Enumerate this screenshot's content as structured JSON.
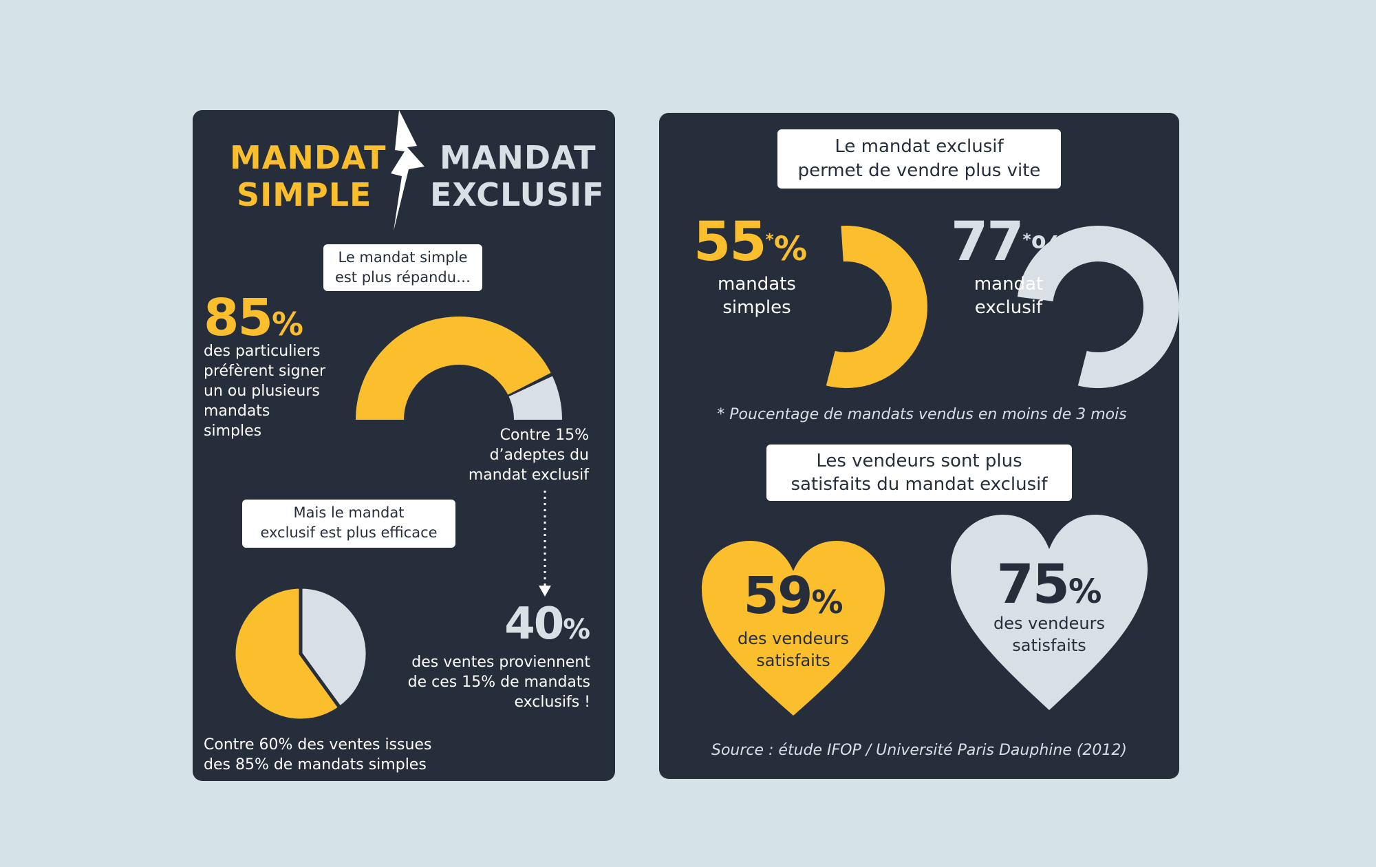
{
  "colors": {
    "background": "#d5e2e8",
    "panel": "#252e3a",
    "accent": "#fbbe2c",
    "secondary": "#d8e0e5",
    "text": "#ffffff"
  },
  "left": {
    "title_simple": [
      "MANDAT",
      "SIMPLE"
    ],
    "title_exclusive": [
      "MANDAT",
      "EXCLUSIF"
    ],
    "callout1": [
      "Le mandat simple",
      "est plus répandu…"
    ],
    "stat85": {
      "num": "85",
      "pct": "%"
    },
    "stat85_text": [
      "des particuliers",
      "préfèrent signer",
      "un ou plusieurs",
      "mandats",
      "simples"
    ],
    "contre15_text": [
      "Contre 15%",
      "d’adeptes du",
      "mandat exclusif"
    ],
    "callout2": [
      "Mais le mandat",
      "exclusif est plus efficace"
    ],
    "stat40": {
      "num": "40",
      "pct": "%"
    },
    "stat40_text": [
      "des ventes proviennent",
      "de ces 15% de mandats",
      "exclusifs !"
    ],
    "bottom_text": [
      "Contre 60% des ventes issues",
      "des 85% de mandats simples"
    ]
  },
  "right": {
    "callout1": [
      "Le mandat exclusif",
      "permet de vendre plus vite"
    ],
    "stat55": {
      "num": "55",
      "star": "*",
      "pct": "%"
    },
    "stat55_label": [
      "mandats",
      "simples"
    ],
    "stat77": {
      "num": "77",
      "star": "*",
      "pct": "%"
    },
    "stat77_label": [
      "mandat",
      "exclusif"
    ],
    "footnote": "* Poucentage de mandats vendus en moins de 3 mois",
    "callout2": [
      "Les vendeurs sont plus",
      "satisfaits du mandat exclusif"
    ],
    "stat59": {
      "num": "59",
      "pct": "%"
    },
    "stat59_label": [
      "des vendeurs",
      "satisfaits"
    ],
    "stat75": {
      "num": "75",
      "pct": "%"
    },
    "stat75_label": [
      "des vendeurs",
      "satisfaits"
    ],
    "source": "Source : étude IFOP / Université Paris Dauphine (2012)"
  },
  "chart_data": [
    {
      "type": "pie",
      "categories": [
        "mandat simple",
        "mandat exclusif"
      ],
      "values": [
        85,
        15
      ],
      "shape": "half-donut"
    },
    {
      "type": "pie",
      "categories": [
        "mandats simples",
        "mandats exclusifs"
      ],
      "values": [
        60,
        40
      ]
    },
    {
      "type": "pie",
      "categories": [
        "mandats simples"
      ],
      "values": [
        55
      ],
      "shape": "donut"
    },
    {
      "type": "pie",
      "categories": [
        "mandat exclusif"
      ],
      "values": [
        77
      ],
      "shape": "donut"
    },
    {
      "type": "bar",
      "categories": [
        "mandat simple",
        "mandat exclusif"
      ],
      "values": [
        59,
        75
      ],
      "shape": "heart"
    }
  ]
}
